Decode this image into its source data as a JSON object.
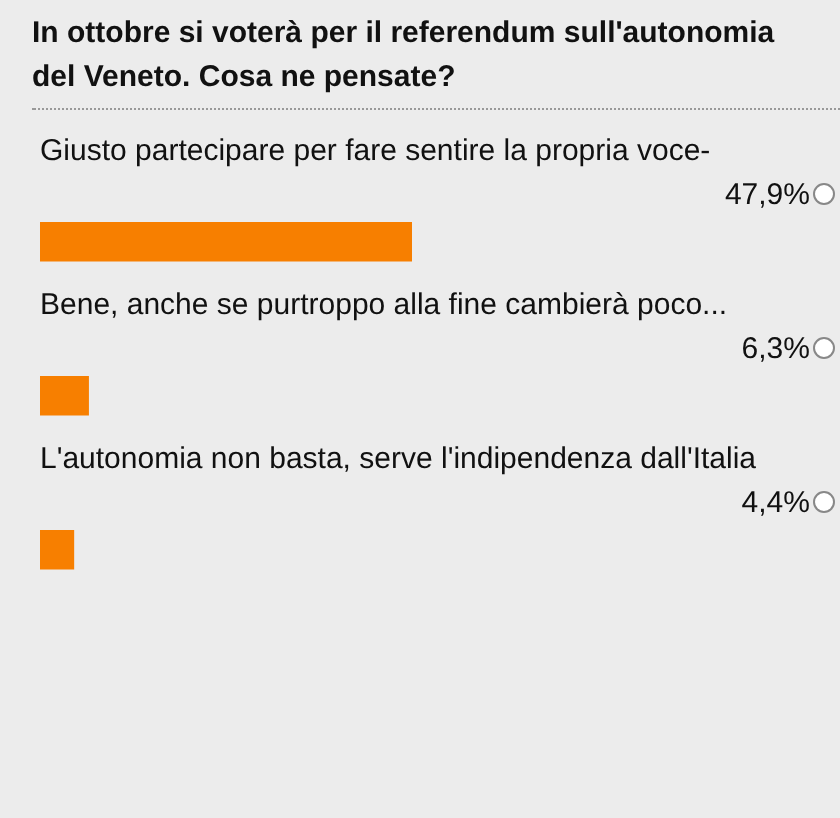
{
  "chart_data": {
    "type": "bar",
    "orientation": "horizontal",
    "title": "In ottobre si voterà per il referendum sull'autonomia del Veneto. Cosa ne pensate?",
    "categories": [
      "Giusto partecipare per fare sentire la propria voce-",
      "Bene, anche se purtroppo alla fine cambierà poco...",
      "L'autonomia non basta, serve l'indipendenza dall'Italia"
    ],
    "values": [
      47.9,
      6.3,
      4.4
    ],
    "value_labels": [
      "47,9%",
      "6,3%",
      "4,4%"
    ],
    "color": "#f77f00"
  }
}
